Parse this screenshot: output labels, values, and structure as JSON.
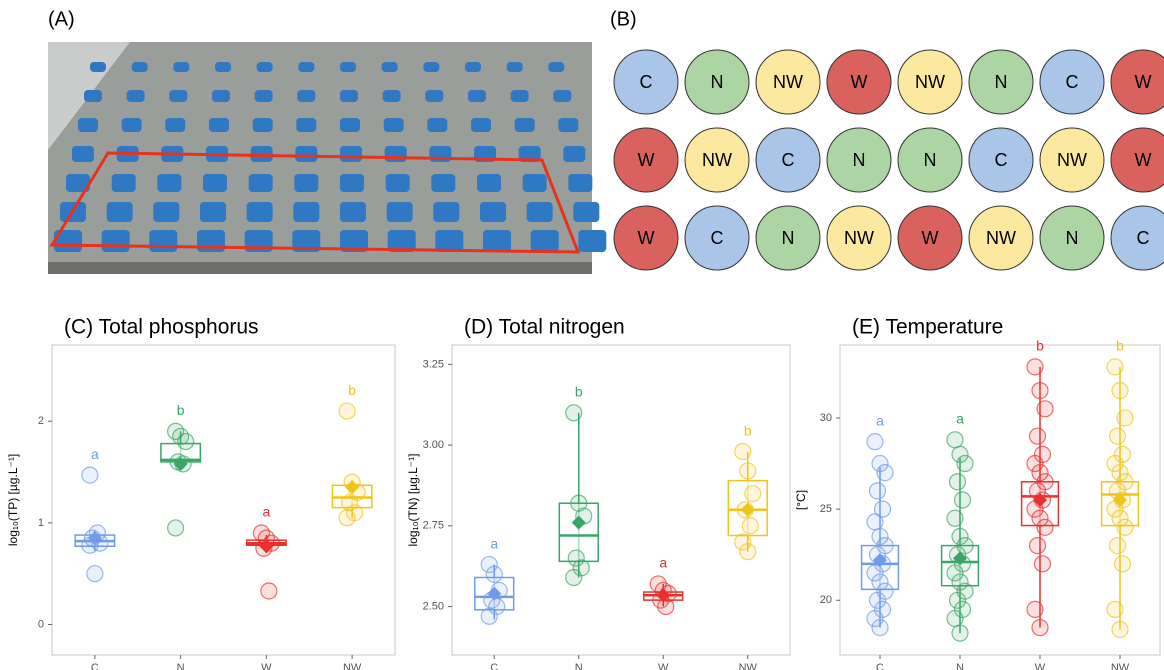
{
  "panel_a": {
    "label": "(A)"
  },
  "panel_b": {
    "label": "(B)",
    "grid": [
      [
        "C",
        "N",
        "NW",
        "W",
        "NW",
        "N",
        "C",
        "W"
      ],
      [
        "W",
        "NW",
        "C",
        "N",
        "N",
        "C",
        "NW",
        "W"
      ],
      [
        "W",
        "C",
        "N",
        "NW",
        "W",
        "NW",
        "N",
        "C"
      ]
    ],
    "colors": {
      "C": "#a9c6e8",
      "N": "#acd5a4",
      "NW": "#fde8a0",
      "W": "#d9625f"
    }
  },
  "chart_data": [
    {
      "type": "box",
      "title": "(C) Total phosphorus",
      "ylabel": "log₁₀(TP) [µg.L⁻¹]",
      "categories": [
        "C",
        "N",
        "W",
        "NW"
      ],
      "colors": [
        "#6f9be8",
        "#3aa566",
        "#e8312e",
        "#f0c419"
      ],
      "ylim": [
        -0.3,
        2.75
      ],
      "yticks": [
        0,
        1,
        2
      ],
      "q1": [
        0.77,
        1.6,
        0.78,
        1.15
      ],
      "median": [
        0.82,
        1.62,
        0.8,
        1.25
      ],
      "q3": [
        0.88,
        1.78,
        0.83,
        1.37
      ],
      "whiskers": [
        [
          0.72,
          0.92
        ],
        [
          1.58,
          1.9
        ],
        [
          0.76,
          0.88
        ],
        [
          1.05,
          1.42
        ]
      ],
      "means": [
        0.85,
        1.58,
        0.77,
        1.35
      ],
      "points": [
        [
          1.47,
          0.5,
          0.8,
          0.85,
          0.9,
          0.78
        ],
        [
          1.9,
          1.85,
          1.8,
          1.6,
          1.58,
          0.95
        ],
        [
          0.9,
          0.85,
          0.8,
          0.75,
          0.33
        ],
        [
          2.1,
          1.4,
          1.3,
          1.2,
          1.1,
          1.05
        ]
      ],
      "letters": [
        "a",
        "b",
        "a",
        "b"
      ]
    },
    {
      "type": "box",
      "title": "(D) Total nitrogen",
      "ylabel": "log₁₀(TN) [µg.L⁻¹]",
      "categories": [
        "C",
        "N",
        "W",
        "NW"
      ],
      "colors": [
        "#6f9be8",
        "#3aa566",
        "#e8312e",
        "#f0c419"
      ],
      "ylim": [
        2.35,
        3.31
      ],
      "yticks": [
        {
          "value": 2.5,
          "label": "2.50"
        },
        {
          "value": 2.75,
          "label": "2.75"
        },
        {
          "value": 3,
          "label": "3.00"
        },
        {
          "value": 3.25,
          "label": "3.25"
        }
      ],
      "q1": [
        2.49,
        2.64,
        2.52,
        2.72
      ],
      "median": [
        2.53,
        2.72,
        2.535,
        2.8
      ],
      "q3": [
        2.59,
        2.82,
        2.545,
        2.89
      ],
      "whiskers": [
        [
          2.46,
          2.63
        ],
        [
          2.59,
          3.1
        ],
        [
          2.5,
          2.57
        ],
        [
          2.67,
          2.98
        ]
      ],
      "means": [
        2.54,
        2.76,
        2.535,
        2.8
      ],
      "points": [
        [
          2.63,
          2.6,
          2.55,
          2.52,
          2.5,
          2.47
        ],
        [
          3.1,
          2.82,
          2.78,
          2.65,
          2.62,
          2.59
        ],
        [
          2.57,
          2.55,
          2.54,
          2.52,
          2.5
        ],
        [
          2.98,
          2.92,
          2.85,
          2.8,
          2.75,
          2.7,
          2.67
        ]
      ],
      "letters": [
        "a",
        "b",
        "a",
        "b"
      ]
    },
    {
      "type": "box",
      "title": "(E) Temperature",
      "ylabel": "[°C]",
      "categories": [
        "C",
        "N",
        "W",
        "NW"
      ],
      "colors": [
        "#6f9be8",
        "#3aa566",
        "#e8312e",
        "#f0c419"
      ],
      "ylim": [
        17,
        34
      ],
      "yticks": [
        20,
        25,
        30
      ],
      "q1": [
        20.6,
        20.8,
        24.1,
        24.1
      ],
      "median": [
        22,
        22.1,
        25.7,
        25.8
      ],
      "q3": [
        23,
        23,
        26.5,
        26.5
      ],
      "whiskers": [
        [
          18.5,
          27.3
        ],
        [
          18.2,
          27.8
        ],
        [
          18.5,
          32.8
        ],
        [
          18.4,
          32.8
        ]
      ],
      "means": [
        22.2,
        22.3,
        25.5,
        25.5
      ],
      "points": [
        [
          28.7,
          27.5,
          27,
          26,
          25,
          24.3,
          23.5,
          23,
          22.5,
          22,
          21.5,
          21,
          20.5,
          20,
          19.5,
          19,
          18.5
        ],
        [
          28.8,
          28,
          27.5,
          26.5,
          25.5,
          24.5,
          23.5,
          23,
          22.5,
          22,
          21.5,
          21,
          20.5,
          20,
          19.5,
          19,
          18.2
        ],
        [
          32.8,
          31.5,
          30.5,
          29,
          28,
          27.5,
          27,
          26.5,
          26,
          25.5,
          25,
          24.5,
          24,
          23,
          22,
          19.5,
          18.5
        ],
        [
          32.8,
          31.5,
          30,
          29,
          28,
          27.5,
          27,
          26.5,
          26,
          25.5,
          25,
          24.5,
          24,
          23,
          22,
          19.5,
          18.4
        ]
      ],
      "letters": [
        "a",
        "a",
        "b",
        "b"
      ]
    }
  ]
}
